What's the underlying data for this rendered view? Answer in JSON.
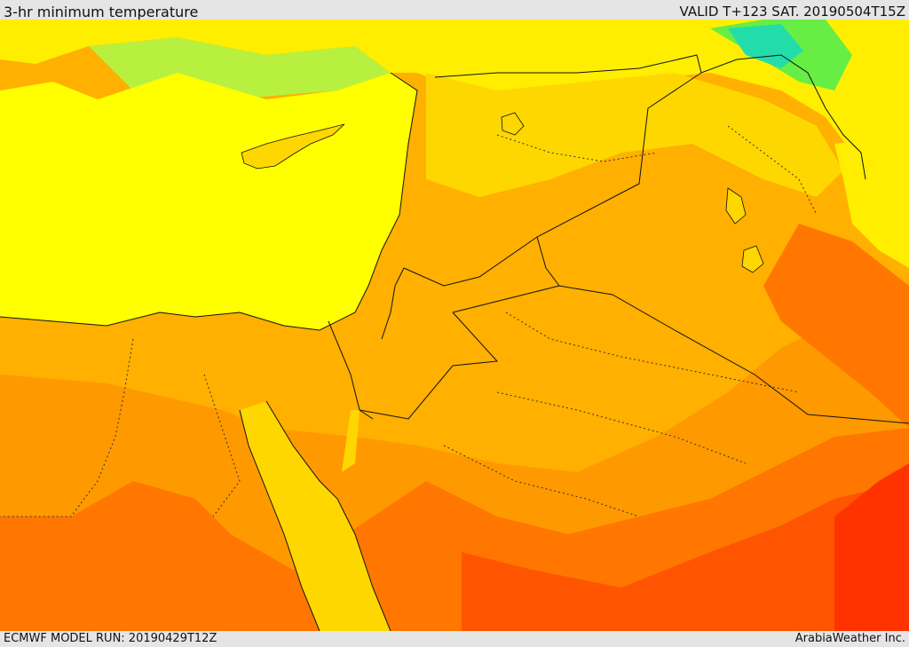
{
  "header": {
    "title": "3-hr minimum temperature",
    "valid": "VALID T+123 SAT. 20190504T15Z"
  },
  "footer": {
    "model_run": "ECMWF MODEL RUN: 20190429T12Z",
    "credit": "ArabiaWeather Inc."
  },
  "map": {
    "colors": {
      "sea": "#ffff00",
      "cool_green": "#66ee44",
      "pale_yellow": "#ffee00",
      "gold": "#ffd700",
      "light_orange": "#ffb000",
      "orange": "#ff9900",
      "dark_orange": "#ff7700",
      "red_orange": "#ff5500",
      "red": "#ff3300",
      "teal": "#22ddaa",
      "border": "#111111"
    }
  }
}
